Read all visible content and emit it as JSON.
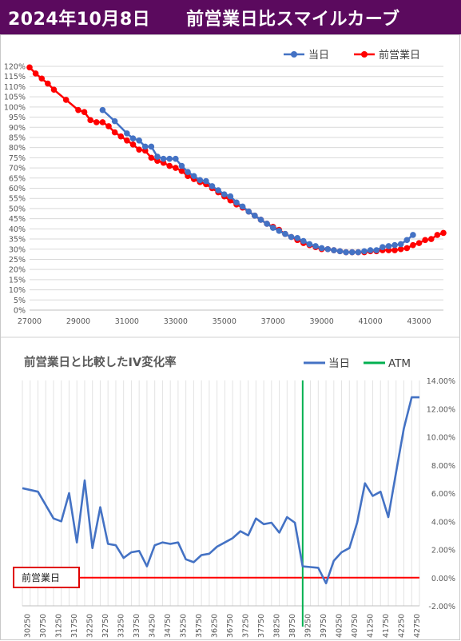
{
  "header": {
    "title": "2024年10月8日　　前営業日比スマイルカーブ"
  },
  "chart_data": [
    {
      "type": "line",
      "title": "",
      "xlabel": "",
      "ylabel": "",
      "xlim": [
        27000,
        44000
      ],
      "ylim": [
        0,
        120
      ],
      "x_ticks": [
        "27000",
        "29000",
        "31000",
        "33000",
        "35000",
        "37000",
        "39000",
        "41000",
        "43000"
      ],
      "y_ticks": [
        "0%",
        "5%",
        "10%",
        "15%",
        "20%",
        "25%",
        "30%",
        "35%",
        "40%",
        "45%",
        "50%",
        "55%",
        "60%",
        "65%",
        "70%",
        "75%",
        "80%",
        "85%",
        "90%",
        "95%",
        "100%",
        "105%",
        "110%",
        "115%",
        "120%"
      ],
      "grid": "horizontal",
      "legend": "top-right",
      "series": [
        {
          "name": "当日",
          "color": "#4472c4",
          "x": [
            30000,
            30500,
            31000,
            31250,
            31500,
            31750,
            32000,
            32250,
            32500,
            32750,
            33000,
            33250,
            33500,
            33750,
            34000,
            34250,
            34500,
            34750,
            35000,
            35250,
            35500,
            35750,
            36000,
            36250,
            36500,
            36750,
            37000,
            37250,
            37500,
            37750,
            38000,
            38250,
            38500,
            38750,
            39000,
            39250,
            39500,
            39750,
            40000,
            40250,
            40500,
            40750,
            41000,
            41250,
            41500,
            41750,
            42000,
            42250,
            42500,
            42750
          ],
          "y": [
            98.5,
            93,
            87,
            84.5,
            83.5,
            80.5,
            80.5,
            75.5,
            74.5,
            74.5,
            74.5,
            71,
            68,
            66,
            64,
            63.5,
            61,
            59,
            57,
            56,
            53,
            51,
            48.5,
            46.5,
            44.5,
            42.5,
            40.5,
            39,
            37.5,
            36,
            35.5,
            34,
            32.5,
            31.5,
            30.5,
            30,
            29.5,
            29,
            28.5,
            28.5,
            28.5,
            29,
            29.5,
            29.5,
            31,
            31.5,
            32,
            32.5,
            34.5,
            37
          ]
        },
        {
          "name": "前営業日",
          "color": "#ff0000",
          "x": [
            27000,
            27250,
            27500,
            27750,
            28000,
            28500,
            29000,
            29250,
            29500,
            29750,
            30000,
            30250,
            30500,
            30750,
            31000,
            31250,
            31500,
            31750,
            32000,
            32250,
            32500,
            32750,
            33000,
            33250,
            33500,
            33750,
            34000,
            34250,
            34500,
            34750,
            35000,
            35250,
            35500,
            35750,
            36000,
            36250,
            36500,
            36750,
            37000,
            37250,
            37500,
            37750,
            38000,
            38250,
            38500,
            38750,
            39000,
            39250,
            39500,
            39750,
            40000,
            40250,
            40500,
            40750,
            41000,
            41250,
            41500,
            41750,
            42000,
            42250,
            42500,
            42750,
            43000,
            43250,
            43500,
            43750,
            44000
          ],
          "y": [
            119.5,
            116.5,
            114,
            111.5,
            108.5,
            103.5,
            98.5,
            97.5,
            93.5,
            92.5,
            92.5,
            90.5,
            87.5,
            85.5,
            83.5,
            81.5,
            79,
            78.5,
            75,
            73.5,
            72.5,
            71,
            70,
            68.5,
            66,
            64.5,
            63,
            62,
            60,
            58,
            56,
            54,
            52,
            50.5,
            48.5,
            46.5,
            44.5,
            42.5,
            41,
            39.5,
            37.5,
            36,
            34.5,
            33,
            32,
            31,
            30,
            30,
            29.5,
            29,
            28.5,
            28.5,
            28.5,
            28.5,
            29,
            29,
            29.5,
            29.5,
            29.5,
            30,
            30.5,
            32,
            33,
            34.5,
            35,
            37,
            38
          ]
        }
      ]
    },
    {
      "type": "line",
      "title": "前営業日と比較したIV変化率",
      "xlabel": "",
      "ylabel": "",
      "ylim": [
        -2,
        14
      ],
      "y_ticks": [
        "-2.00%",
        "0.00%",
        "2.00%",
        "4.00%",
        "6.00%",
        "8.00%",
        "10.00%",
        "12.00%",
        "14.00%"
      ],
      "x_tick_labels": [
        "30250",
        "30750",
        "31250",
        "31750",
        "32250",
        "32750",
        "33250",
        "33750",
        "34250",
        "34750",
        "35250",
        "35750",
        "36250",
        "36750",
        "37250",
        "37750",
        "38250",
        "38750",
        "39250",
        "39750",
        "40250",
        "40750",
        "41250",
        "41750",
        "42250",
        "42750"
      ],
      "x_range": [
        30000,
        42750
      ],
      "legend": "top-right",
      "baseline_label": "前営業日",
      "atm": {
        "name": "ATM",
        "x": 39000,
        "color": "#00b050"
      },
      "series": [
        {
          "name": "当日",
          "color": "#4472c4",
          "x": [
            30000,
            30500,
            31000,
            31250,
            31500,
            31750,
            32000,
            32250,
            32500,
            32750,
            33000,
            33250,
            33500,
            33750,
            34000,
            34250,
            34500,
            34750,
            35000,
            35250,
            35500,
            35750,
            36000,
            36250,
            36500,
            36750,
            37000,
            37250,
            37500,
            37750,
            38000,
            38250,
            38500,
            38750,
            39000,
            39250,
            39500,
            39750,
            40000,
            40250,
            40500,
            40750,
            41000,
            41250,
            41500,
            41750,
            42000,
            42250,
            42500,
            42750
          ],
          "y": [
            6.35,
            6.1,
            4.2,
            4.0,
            6.0,
            2.5,
            6.9,
            2.1,
            5.0,
            2.4,
            2.3,
            1.4,
            1.8,
            1.9,
            0.8,
            2.3,
            2.5,
            2.4,
            2.5,
            1.3,
            1.1,
            1.6,
            1.7,
            2.2,
            2.5,
            2.8,
            3.3,
            3.0,
            4.2,
            3.8,
            3.9,
            3.2,
            4.3,
            3.9,
            0.8,
            0.75,
            0.7,
            -0.4,
            1.2,
            1.8,
            2.1,
            3.9,
            6.7,
            5.8,
            6.1,
            4.3,
            7.5,
            10.6,
            12.8,
            12.8
          ]
        }
      ],
      "baseline": {
        "name": "前営業日",
        "value": 0,
        "color": "#ff0000"
      }
    }
  ]
}
